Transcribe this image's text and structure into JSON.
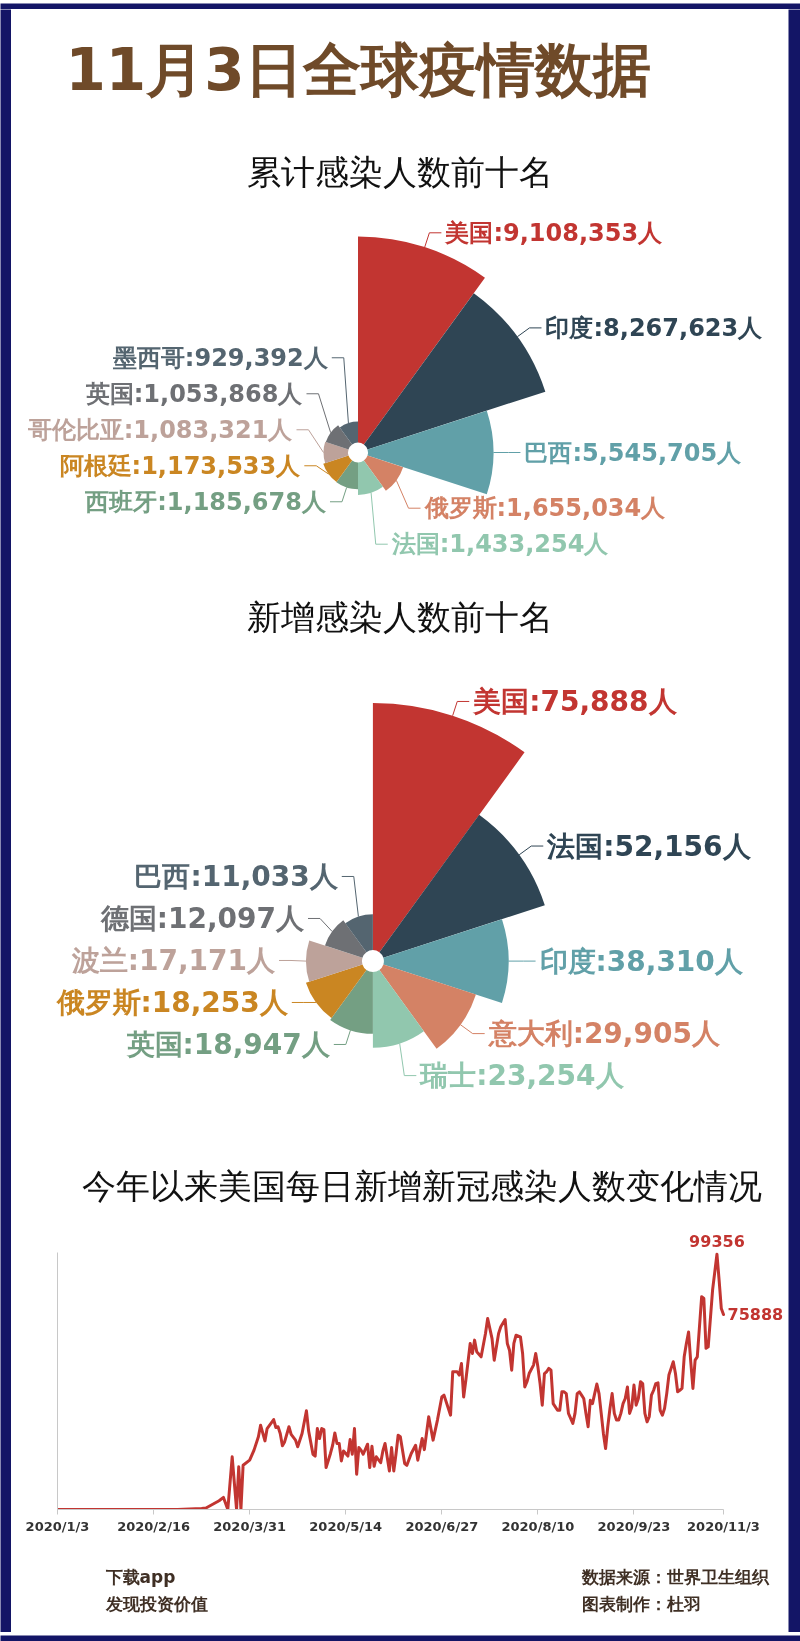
{
  "chart_data": [
    {
      "type": "other",
      "title": "11月3日全球疫情数据"
    },
    {
      "type": "other",
      "title": "累计感染人数前十名",
      "categories": [
        "美国",
        "印度",
        "巴西",
        "俄罗斯",
        "法国",
        "西班牙",
        "阿根廷",
        "哥伦比亚",
        "英国",
        "墨西哥"
      ],
      "values": [
        9108353,
        8267623,
        5545705,
        1655034,
        1433254,
        1185678,
        1173533,
        1083321,
        1053868,
        929392
      ],
      "colors": [
        "#c23531",
        "#2f4554",
        "#61a0a8",
        "#d48265",
        "#91c7ae",
        "#749f83",
        "#ca8622",
        "#bda29a",
        "#6e7074",
        "#546570"
      ],
      "value_labels": [
        ":9,108,353人",
        ":8,267,623人",
        ":5,545,705人",
        ":1,655,034人",
        ":1,433,254人",
        ":1,185,678人",
        ":1,173,533人",
        ":1,083,321人",
        ":1,053,868人",
        ":929,392人"
      ]
    },
    {
      "type": "other",
      "title": "新增感染人数前十名",
      "categories": [
        "美国",
        "法国",
        "印度",
        "意大利",
        "瑞士",
        "英国",
        "俄罗斯",
        "波兰",
        "德国",
        "巴西"
      ],
      "values": [
        75888,
        52156,
        38310,
        29905,
        23254,
        18947,
        18253,
        17171,
        12097,
        11033
      ],
      "colors": [
        "#c23531",
        "#2f4554",
        "#61a0a8",
        "#d48265",
        "#91c7ae",
        "#749f83",
        "#ca8622",
        "#bda29a",
        "#6e7074",
        "#546570"
      ],
      "value_labels": [
        ":75,888人",
        ":52,156人",
        ":38,310人",
        ":29,905人",
        ":23,254人",
        ":18,947人",
        ":18,253人",
        ":17,171人",
        ":12,097人",
        ":11,033人"
      ]
    },
    {
      "type": "line",
      "title": "今年以来美国每日新增新冠感染人数变化情况",
      "x": [
        "2020-01-03",
        "2020-02-02",
        "2020-02-27",
        "2020-03-09",
        "2020-03-11",
        "2020-03-17",
        "2020-03-19",
        "2020-03-21",
        "2020-03-23",
        "2020-03-25",
        "2020-03-26",
        "2020-03-27",
        "2020-03-28",
        "2020-03-31",
        "2020-04-02",
        "2020-04-04",
        "2020-04-05",
        "2020-04-07",
        "2020-04-08",
        "2020-04-11",
        "2020-04-12",
        "2020-04-13",
        "2020-04-14",
        "2020-04-15",
        "2020-04-16",
        "2020-04-18",
        "2020-04-19",
        "2020-04-21",
        "2020-04-22",
        "2020-04-24",
        "2020-04-26",
        "2020-04-27",
        "2020-04-29",
        "2020-04-30",
        "2020-05-01",
        "2020-05-02",
        "2020-05-03",
        "2020-05-04",
        "2020-05-05",
        "2020-05-07",
        "2020-05-08",
        "2020-05-09",
        "2020-05-10",
        "2020-05-11",
        "2020-05-12",
        "2020-05-13",
        "2020-05-15",
        "2020-05-16",
        "2020-05-17",
        "2020-05-18",
        "2020-05-19",
        "2020-05-20",
        "2020-05-21",
        "2020-05-22",
        "2020-05-24",
        "2020-05-25",
        "2020-05-26",
        "2020-05-27",
        "2020-05-28",
        "2020-05-30",
        "2020-05-31",
        "2020-06-01",
        "2020-06-03",
        "2020-06-04",
        "2020-06-05",
        "2020-06-06",
        "2020-06-07",
        "2020-06-08",
        "2020-06-10",
        "2020-06-11",
        "2020-06-13",
        "2020-06-15",
        "2020-06-16",
        "2020-06-18",
        "2020-06-19",
        "2020-06-21",
        "2020-06-22",
        "2020-06-23",
        "2020-06-25",
        "2020-06-27",
        "2020-06-28",
        "2020-07-01",
        "2020-07-02",
        "2020-07-04",
        "2020-07-05",
        "2020-07-06",
        "2020-07-07",
        "2020-07-08",
        "2020-07-10",
        "2020-07-11",
        "2020-07-12",
        "2020-07-13",
        "2020-07-15",
        "2020-07-17",
        "2020-07-18",
        "2020-07-20",
        "2020-07-21",
        "2020-07-23",
        "2020-07-24",
        "2020-07-26",
        "2020-07-27",
        "2020-07-28",
        "2020-07-29",
        "2020-07-30",
        "2020-07-31",
        "2020-08-02",
        "2020-08-03",
        "2020-08-04",
        "2020-08-05",
        "2020-08-06",
        "2020-08-08",
        "2020-08-09",
        "2020-08-10",
        "2020-08-11",
        "2020-08-12",
        "2020-08-13",
        "2020-08-14",
        "2020-08-15",
        "2020-08-16",
        "2020-08-17",
        "2020-08-19",
        "2020-08-20",
        "2020-08-21",
        "2020-08-22",
        "2020-08-23",
        "2020-08-24",
        "2020-08-26",
        "2020-08-27",
        "2020-08-28",
        "2020-08-29",
        "2020-08-30",
        "2020-08-31",
        "2020-09-01",
        "2020-09-02",
        "2020-09-03",
        "2020-09-04",
        "2020-09-05",
        "2020-09-06",
        "2020-09-07",
        "2020-09-08",
        "2020-09-09",
        "2020-09-10",
        "2020-09-11",
        "2020-09-12",
        "2020-09-13",
        "2020-09-14",
        "2020-09-15",
        "2020-09-16",
        "2020-09-17",
        "2020-09-18",
        "2020-09-19",
        "2020-09-20",
        "2020-09-21",
        "2020-09-22",
        "2020-09-23",
        "2020-09-24",
        "2020-09-25",
        "2020-09-26",
        "2020-09-27",
        "2020-09-28",
        "2020-09-29",
        "2020-09-30",
        "2020-10-01",
        "2020-10-02",
        "2020-10-03",
        "2020-10-04",
        "2020-10-05",
        "2020-10-06",
        "2020-10-07",
        "2020-10-08",
        "2020-10-09",
        "2020-10-10",
        "2020-10-11",
        "2020-10-12",
        "2020-10-13",
        "2020-10-14",
        "2020-10-15",
        "2020-10-16",
        "2020-10-17",
        "2020-10-18",
        "2020-10-19",
        "2020-10-20",
        "2020-10-21",
        "2020-10-22",
        "2020-10-24",
        "2020-10-25",
        "2020-10-26",
        "2020-10-27",
        "2020-10-29",
        "2020-10-31",
        "2020-11-01",
        "2020-11-02",
        "2020-11-03"
      ],
      "series": [
        {
          "color": "#c23531",
          "values": [
            0,
            0,
            0,
            400,
            600,
            3400,
            4700,
            0,
            20500,
            0,
            16600,
            0,
            17200,
            19200,
            23100,
            28300,
            32800,
            26700,
            31500,
            35000,
            31900,
            32200,
            29600,
            24800,
            26300,
            32200,
            29200,
            27000,
            24400,
            29600,
            38400,
            30600,
            21500,
            20800,
            31500,
            27600,
            31500,
            31100,
            16300,
            21800,
            25000,
            29800,
            25700,
            25700,
            18900,
            22800,
            20800,
            27200,
            21500,
            31500,
            13700,
            24100,
            23100,
            21500,
            25400,
            16300,
            24600,
            16800,
            20500,
            18200,
            22800,
            25700,
            15000,
            24100,
            15000,
            21500,
            28900,
            28300,
            17900,
            17200,
            21800,
            25000,
            19200,
            27600,
            23300,
            36100,
            31500,
            27000,
            34800,
            43800,
            44500,
            36700,
            53600,
            53600,
            52300,
            56800,
            43800,
            50300,
            64600,
            60700,
            65900,
            61400,
            59400,
            68500,
            74300,
            66500,
            58100,
            68500,
            71100,
            73900,
            64600,
            62000,
            54200,
            64600,
            67800,
            67200,
            60700,
            47700,
            49700,
            52900,
            56200,
            60700,
            55500,
            49000,
            40600,
            52900,
            53600,
            54900,
            54200,
            41200,
            38600,
            38600,
            45800,
            45800,
            45100,
            37400,
            33500,
            37400,
            45100,
            45800,
            44500,
            43200,
            37400,
            32200,
            42500,
            41200,
            45100,
            48800,
            45100,
            37400,
            29600,
            23700,
            32200,
            39300,
            45100,
            37400,
            34800,
            34800,
            37400,
            41200,
            43200,
            47700,
            37400,
            39900,
            48400,
            40600,
            43200,
            49700,
            49000,
            37400,
            34100,
            36100,
            44500,
            46400,
            49000,
            49300,
            38600,
            36700,
            39300,
            45100,
            52300,
            54900,
            57500,
            52900,
            45800,
            46400,
            47100,
            59400,
            64600,
            69100,
            57500,
            47100,
            58100,
            59400,
            82800,
            82100,
            62700,
            63300,
            85400,
            99356,
            89200,
            78200,
            75888
          ],
          "value_labels": [
            null,
            null,
            null,
            null,
            null,
            null,
            null,
            null,
            null,
            null,
            null,
            null,
            null,
            null,
            null,
            null,
            null,
            null,
            null,
            null,
            null,
            null,
            null,
            null,
            null,
            null,
            null,
            null,
            null,
            null,
            null,
            null,
            null,
            null,
            null,
            null,
            null,
            null,
            null,
            null,
            null,
            null,
            null,
            null,
            null,
            null,
            null,
            null,
            null,
            null,
            null,
            null,
            null,
            null,
            null,
            null,
            null,
            null,
            null,
            null,
            null,
            null,
            null,
            null,
            null,
            null,
            null,
            null,
            null,
            null,
            null,
            null,
            null,
            null,
            null,
            null,
            null,
            null,
            null,
            null,
            null,
            null,
            null,
            null,
            null,
            null,
            null,
            null,
            null,
            null,
            null,
            null,
            null,
            null,
            null,
            null,
            null,
            null,
            null,
            null,
            null,
            null,
            null,
            null,
            null,
            null,
            null,
            null,
            null,
            null,
            null,
            null,
            null,
            null,
            null,
            null,
            null,
            null,
            null,
            null,
            null,
            null,
            null,
            null,
            null,
            null,
            null,
            null,
            null,
            null,
            null,
            null,
            null,
            null,
            null,
            null,
            null,
            null,
            null,
            null,
            null,
            null,
            null,
            null,
            null,
            null,
            null,
            null,
            null,
            null,
            null,
            null,
            null,
            null,
            null,
            null,
            null,
            null,
            null,
            null,
            null,
            null,
            null,
            null,
            null,
            null,
            null,
            null,
            null,
            null,
            null,
            null,
            null,
            null,
            null,
            null,
            null,
            null,
            null,
            null,
            null,
            null,
            null,
            null,
            null,
            null,
            null,
            null,
            null,
            "99356",
            null,
            null,
            "75888"
          ]
        }
      ],
      "xlim": [
        "2020-01-03",
        "2020-11-03"
      ],
      "xticks": [
        {
          "value": "2020-01-03",
          "label": "2020/1/3"
        },
        {
          "value": "2020-02-16",
          "label": "2020/2/16"
        },
        {
          "value": "2020-03-31",
          "label": "2020/3/31"
        },
        {
          "value": "2020-05-14",
          "label": "2020/5/14"
        },
        {
          "value": "2020-06-27",
          "label": "2020/6/27"
        },
        {
          "value": "2020-08-10",
          "label": "2020/8/10"
        },
        {
          "value": "2020-09-23",
          "label": "2020/9/23"
        },
        {
          "value": "2020-11-03",
          "label": "2020/11/3"
        }
      ],
      "ylim": [
        0,
        100000
      ],
      "tick_labels": "x"
    },
    {
      "type": "other",
      "annotations": [
        "下载app",
        "发现投资价值",
        "数据来源：世界卫生组织",
        "图表制作：杜羽"
      ]
    }
  ]
}
